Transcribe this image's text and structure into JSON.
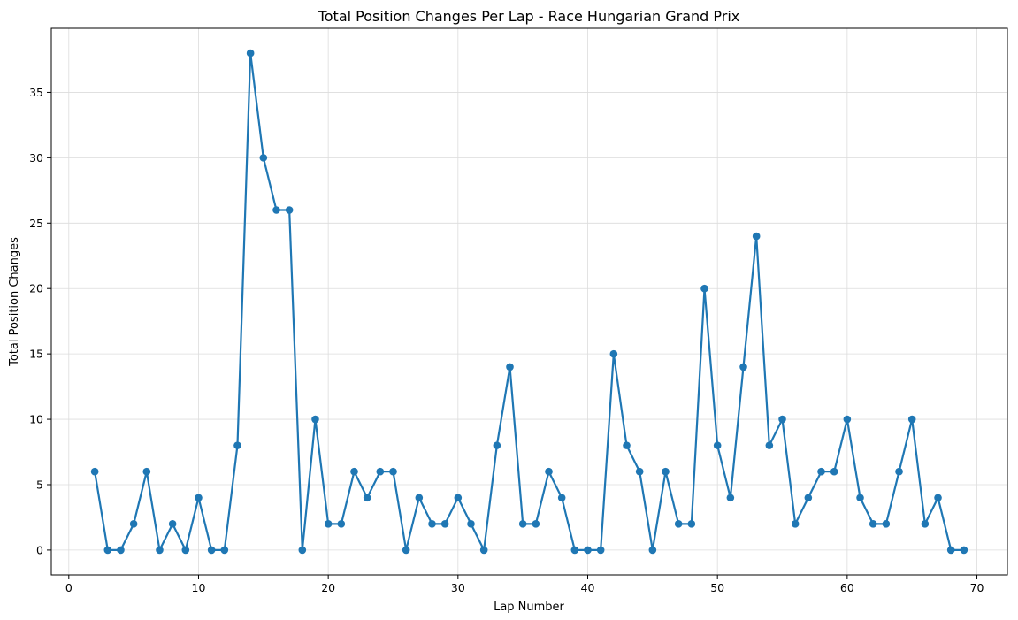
{
  "chart_data": {
    "type": "line",
    "title": "Total Position Changes Per Lap - Race Hungarian Grand Prix",
    "xlabel": "Lap Number",
    "ylabel": "Total Position Changes",
    "xlim": [
      -1.35,
      72.35
    ],
    "ylim": [
      -1.9,
      39.9
    ],
    "xticks": [
      0,
      10,
      20,
      30,
      40,
      50,
      60,
      70
    ],
    "yticks": [
      0,
      5,
      10,
      15,
      20,
      25,
      30,
      35
    ],
    "grid": true,
    "series": [
      {
        "color": "#1f77b4",
        "marker": "circle",
        "x": [
          2,
          3,
          4,
          5,
          6,
          7,
          8,
          9,
          10,
          11,
          12,
          13,
          14,
          15,
          16,
          17,
          18,
          19,
          20,
          21,
          22,
          23,
          24,
          25,
          26,
          27,
          28,
          29,
          30,
          31,
          32,
          33,
          34,
          35,
          36,
          37,
          38,
          39,
          40,
          41,
          42,
          43,
          44,
          45,
          46,
          47,
          48,
          49,
          50,
          51,
          52,
          53,
          54,
          55,
          56,
          57,
          58,
          59,
          60,
          61,
          62,
          63,
          64,
          65,
          66,
          67,
          68,
          69
        ],
        "y": [
          6,
          0,
          0,
          2,
          6,
          0,
          2,
          0,
          4,
          0,
          0,
          8,
          38,
          30,
          26,
          26,
          0,
          10,
          2,
          2,
          6,
          4,
          6,
          6,
          0,
          4,
          2,
          2,
          4,
          2,
          0,
          8,
          14,
          2,
          2,
          6,
          4,
          0,
          0,
          0,
          15,
          8,
          6,
          0,
          6,
          2,
          2,
          20,
          8,
          4,
          14,
          24,
          8,
          10,
          2,
          4,
          6,
          6,
          10,
          4,
          2,
          2,
          6,
          10,
          2,
          4,
          0,
          0
        ]
      }
    ]
  }
}
